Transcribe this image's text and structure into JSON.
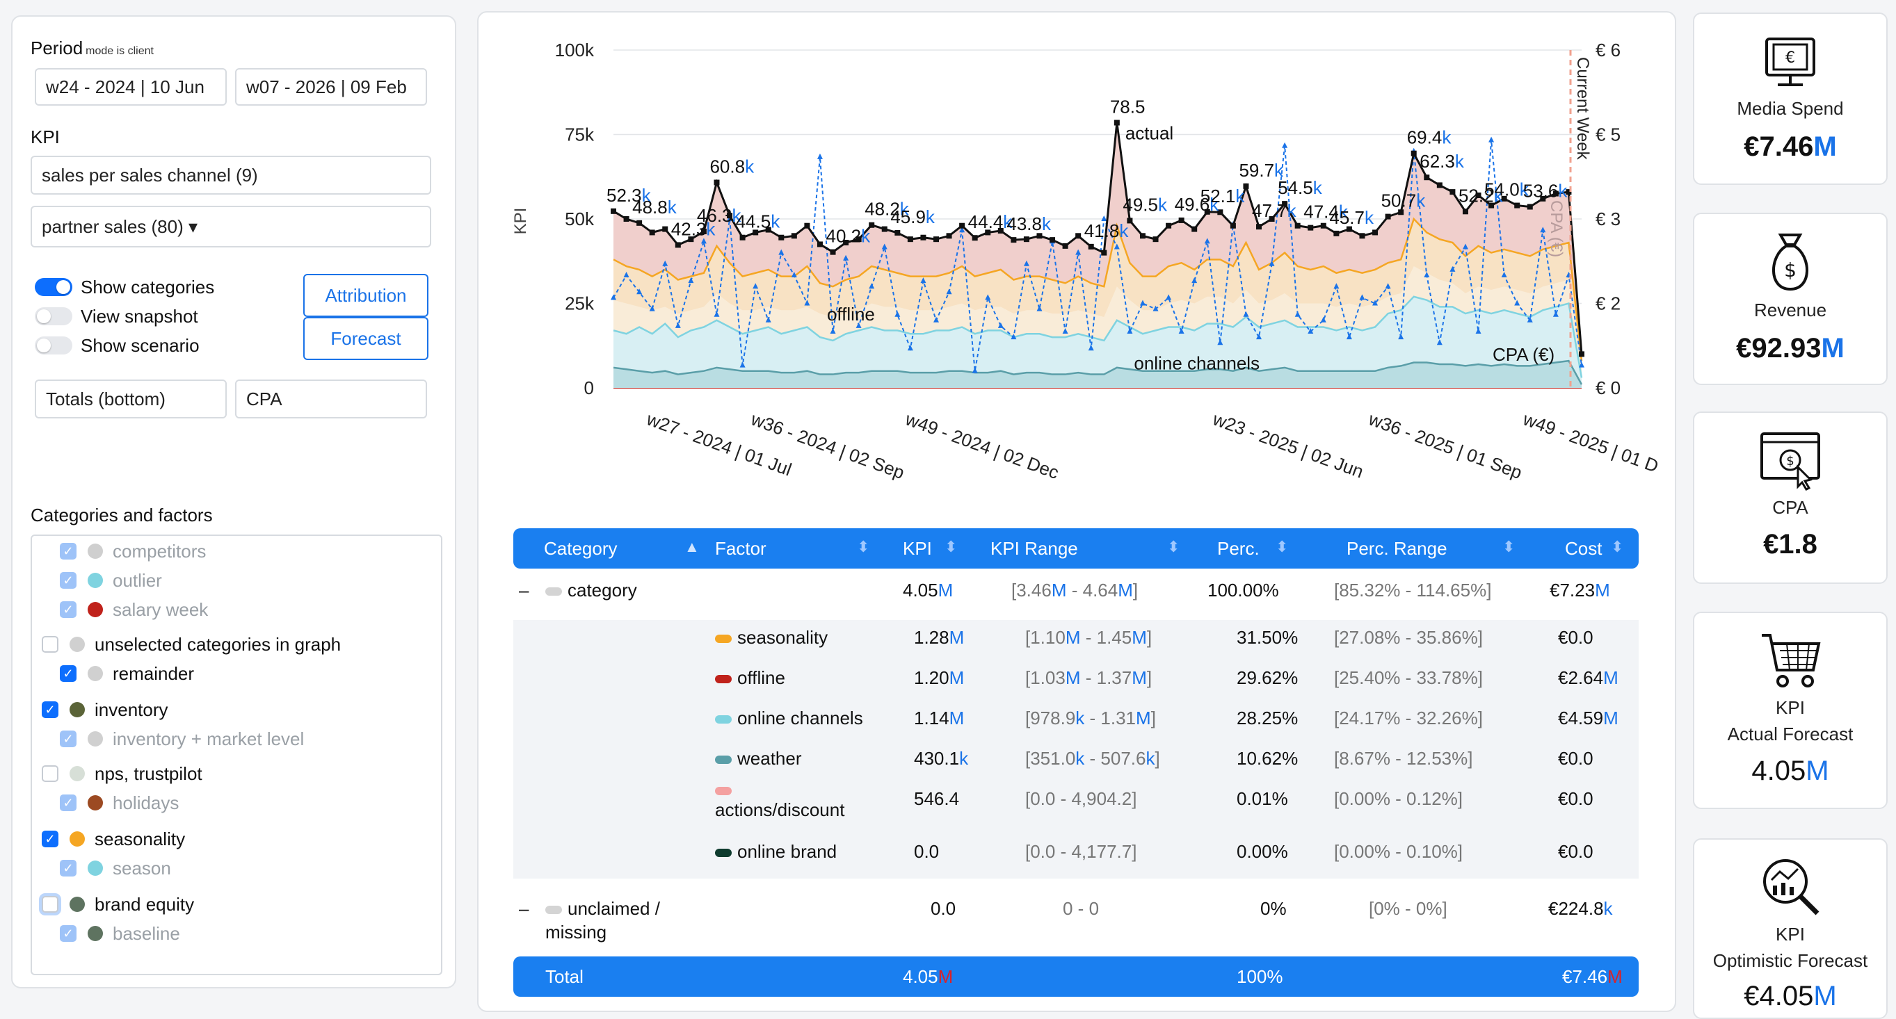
{
  "sidebar": {
    "period_label": "Period",
    "period_note": "mode is client",
    "period_start": "w24 - 2024 | 10 Jun",
    "period_end": "w07 - 2026 | 09 Feb",
    "kpi_label": "KPI",
    "kpi_select": "sales per sales channel (9)",
    "kpi_sub_select": "partner sales (80) ▾",
    "toggles": [
      {
        "label": "Show categories",
        "on": true
      },
      {
        "label": "View snapshot",
        "on": false
      },
      {
        "label": "Show scenario",
        "on": false
      }
    ],
    "attribution_button": "Attribution",
    "forecast_button": "Forecast",
    "totals_select": "Totals (bottom)",
    "metric_select": "CPA",
    "categories_label": "Categories and factors",
    "categories": [
      {
        "label": "competitors",
        "state": "dim",
        "color": "#cfcfcf",
        "indent": true,
        "faded": true
      },
      {
        "label": "outlier",
        "state": "dim",
        "color": "#7fd3e0",
        "indent": true,
        "faded": true
      },
      {
        "label": "salary week",
        "state": "dim",
        "color": "#c0221b",
        "indent": true,
        "faded": true
      },
      {
        "label": "unselected categories in graph",
        "state": "off",
        "color": "#d0d0d0",
        "indent": false,
        "faded": false
      },
      {
        "label": "remainder",
        "state": "on",
        "color": "#d0d0d0",
        "indent": true,
        "faded": false
      },
      {
        "label": "inventory",
        "state": "on",
        "color": "#5b6438",
        "indent": false,
        "faded": false
      },
      {
        "label": "inventory + market level",
        "state": "dim",
        "color": "#d0d0d0",
        "indent": true,
        "faded": true
      },
      {
        "label": "nps, trustpilot",
        "state": "off",
        "color": "#d7dfd7",
        "indent": false,
        "faded": false
      },
      {
        "label": "holidays",
        "state": "dim",
        "color": "#9c4a22",
        "indent": true,
        "faded": true
      },
      {
        "label": "seasonality",
        "state": "on",
        "color": "#f5a623",
        "indent": false,
        "faded": false
      },
      {
        "label": "season",
        "state": "dim",
        "color": "#7fd3e0",
        "indent": true,
        "faded": true
      },
      {
        "label": "brand equity",
        "state": "off",
        "color": "#5e7360",
        "indent": false,
        "faded": false
      },
      {
        "label": "baseline",
        "state": "dim",
        "color": "#5e7360",
        "indent": true,
        "faded": true
      }
    ]
  },
  "chart_data": {
    "type": "area",
    "y_left_ticks": [
      "0",
      "25k",
      "50k",
      "75k",
      "100k"
    ],
    "y_right_ticks": [
      "€ 0",
      "€ 2",
      "€ 3",
      "€ 5",
      "€ 6"
    ],
    "ylabel": "KPI",
    "ylabel_right": "CPA (€)",
    "ylim": [
      0,
      100000
    ],
    "x_ticks": [
      "w27 - 2024 | 01 Jul",
      "w36 - 2024 | 02 Sep",
      "w49 - 2024 | 02 Dec",
      "w23 - 2025 | 02 Jun",
      "w36 - 2025 | 01 Sep",
      "w49 - 2025 | 01 D"
    ],
    "current_week_label": "Current Week",
    "series_labels": {
      "actual": "actual",
      "offline": "offline",
      "online": "online channels",
      "cpa": "CPA (€)"
    },
    "actual": [
      52300,
      50000,
      48800,
      46000,
      47000,
      42300,
      44000,
      46300,
      60800,
      51000,
      44500,
      46000,
      46800,
      44500,
      45000,
      48000,
      42500,
      40200,
      43000,
      44000,
      48200,
      47000,
      45900,
      44000,
      44500,
      44000,
      45000,
      48000,
      44400,
      46000,
      46500,
      43800,
      44000,
      45000,
      43800,
      42000,
      45000,
      41800,
      40000,
      78500,
      49500,
      45000,
      44000,
      48000,
      49600,
      47000,
      52100,
      52000,
      48000,
      59700,
      47700,
      50000,
      54500,
      48000,
      47400,
      48000,
      45700,
      47000,
      45000,
      46000,
      50700,
      52000,
      69400,
      62300,
      60000,
      58000,
      52200,
      57000,
      54000,
      56000,
      54000,
      53600,
      56000,
      57500,
      58000,
      10000
    ],
    "stack_top_offline": [
      38000,
      36000,
      35000,
      33000,
      35000,
      32000,
      33000,
      34000,
      42000,
      37000,
      33000,
      34000,
      35000,
      33000,
      33000,
      36000,
      31000,
      30000,
      32000,
      33000,
      36000,
      35000,
      34000,
      33000,
      33000,
      33000,
      34000,
      36000,
      33000,
      34000,
      35000,
      32000,
      33000,
      33000,
      32000,
      31000,
      33000,
      31000,
      30000,
      48000,
      37000,
      33000,
      33000,
      36000,
      37000,
      35000,
      38000,
      38000,
      36000,
      43000,
      35000,
      37000,
      40000,
      36000,
      35000,
      36000,
      34000,
      35000,
      34000,
      35000,
      37000,
      38000,
      50000,
      46000,
      44000,
      43000,
      39000,
      42000,
      40000,
      41000,
      40000,
      39000,
      41000,
      42000,
      43000,
      8000
    ],
    "stack_top_seasonality": [
      26000,
      25000,
      24000,
      23000,
      24000,
      22000,
      23000,
      24000,
      28000,
      25000,
      23000,
      23000,
      24000,
      23000,
      23000,
      24000,
      22000,
      21000,
      22000,
      23000,
      25000,
      24000,
      24000,
      23000,
      23000,
      23000,
      24000,
      25000,
      23000,
      24000,
      24000,
      22000,
      23000,
      23000,
      22000,
      22000,
      23000,
      22000,
      21000,
      30000,
      26000,
      23000,
      23000,
      25000,
      26000,
      25000,
      27000,
      27000,
      25000,
      29000,
      25000,
      26000,
      28000,
      25000,
      25000,
      25000,
      24000,
      25000,
      24000,
      25000,
      27000,
      28000,
      36000,
      34000,
      32000,
      31000,
      28000,
      30000,
      29000,
      30000,
      29000,
      28000,
      30000,
      31000,
      32000,
      5000
    ],
    "stack_top_online": [
      17000,
      16000,
      18000,
      16000,
      19000,
      15000,
      17000,
      18000,
      20000,
      18000,
      16000,
      17000,
      18000,
      16000,
      17000,
      18000,
      15000,
      14000,
      16000,
      17000,
      18000,
      17000,
      17000,
      16000,
      16000,
      17000,
      17000,
      18000,
      16000,
      17000,
      17000,
      15000,
      16000,
      16000,
      15000,
      15000,
      16000,
      15000,
      14000,
      20000,
      18000,
      16000,
      17000,
      18000,
      18000,
      17000,
      19000,
      19000,
      18000,
      21000,
      18000,
      19000,
      20000,
      18000,
      18000,
      18000,
      17000,
      18000,
      17000,
      18000,
      22000,
      23000,
      27000,
      26000,
      24000,
      24000,
      22000,
      23000,
      22000,
      23000,
      22000,
      21000,
      23000,
      24000,
      25000,
      3000
    ],
    "stack_top_weather": [
      6000,
      5500,
      5000,
      4500,
      5000,
      4000,
      4500,
      5000,
      6000,
      5500,
      5000,
      5000,
      5000,
      4500,
      4500,
      5000,
      4000,
      4000,
      4500,
      4500,
      5000,
      5000,
      5000,
      4500,
      4500,
      4500,
      5000,
      5000,
      4500,
      4500,
      5000,
      4000,
      4500,
      4500,
      4000,
      4000,
      4500,
      4000,
      4000,
      6000,
      5500,
      5000,
      5000,
      5000,
      5000,
      5000,
      5500,
      5500,
      5000,
      6000,
      5000,
      5500,
      6000,
      5000,
      5000,
      5000,
      5000,
      5000,
      5000,
      5000,
      6000,
      6500,
      7500,
      7500,
      7000,
      7000,
      6500,
      7000,
      6500,
      7000,
      6500,
      6500,
      7000,
      7500,
      8000,
      1000
    ],
    "cpa": [
      1.6,
      2.0,
      1.7,
      1.4,
      2.2,
      1.1,
      1.9,
      2.6,
      1.3,
      3.0,
      0.4,
      1.8,
      1.2,
      2.4,
      2.0,
      1.5,
      4.1,
      1.0,
      2.3,
      1.1,
      1.8,
      2.5,
      1.3,
      0.7,
      1.9,
      1.2,
      1.7,
      2.8,
      0.3,
      1.6,
      1.1,
      0.9,
      2.2,
      1.4,
      2.6,
      1.0,
      2.4,
      0.7,
      3.0,
      2.5,
      1.0,
      1.5,
      1.4,
      1.6,
      1.0,
      1.9,
      2.6,
      0.8,
      2.9,
      1.3,
      0.9,
      2.2,
      4.3,
      1.3,
      1.0,
      1.2,
      1.8,
      0.9,
      1.6,
      1.5,
      1.8,
      0.9,
      4.2,
      2.0,
      0.8,
      2.1,
      2.5,
      1.0,
      4.4,
      2.0,
      1.5,
      1.2,
      2.8,
      1.3,
      2.0,
      0.4
    ],
    "point_labels": [
      {
        "i": 0,
        "text": "52.3",
        "unit": "k"
      },
      {
        "i": 2,
        "text": "48.8",
        "unit": "k"
      },
      {
        "i": 5,
        "text": "42.3",
        "unit": "k"
      },
      {
        "i": 8,
        "text": "60.8",
        "unit": "k"
      },
      {
        "i": 7,
        "text": "46.3",
        "unit": "k"
      },
      {
        "i": 10,
        "text": "44.5",
        "unit": "k"
      },
      {
        "i": 17,
        "text": "40.2",
        "unit": "k"
      },
      {
        "i": 20,
        "text": "48.2",
        "unit": "k"
      },
      {
        "i": 22,
        "text": "45.9",
        "unit": "k"
      },
      {
        "i": 28,
        "text": "44.4",
        "unit": "k"
      },
      {
        "i": 31,
        "text": "43.8",
        "unit": "k"
      },
      {
        "i": 37,
        "text": "41.8",
        "unit": "k"
      },
      {
        "i": 39,
        "text": "78.5",
        "unit": ""
      },
      {
        "i": 40,
        "text": "49.5",
        "unit": "k"
      },
      {
        "i": 44,
        "text": "49.6",
        "unit": "k"
      },
      {
        "i": 46,
        "text": "52.1",
        "unit": "k"
      },
      {
        "i": 49,
        "text": "59.7",
        "unit": "k"
      },
      {
        "i": 50,
        "text": "47.7",
        "unit": "k"
      },
      {
        "i": 52,
        "text": "54.5",
        "unit": "k"
      },
      {
        "i": 54,
        "text": "47.4",
        "unit": "k"
      },
      {
        "i": 56,
        "text": "45.7",
        "unit": "k"
      },
      {
        "i": 60,
        "text": "50.7",
        "unit": "k"
      },
      {
        "i": 62,
        "text": "69.4",
        "unit": "k"
      },
      {
        "i": 63,
        "text": "62.3",
        "unit": "k"
      },
      {
        "i": 66,
        "text": "52.2",
        "unit": "k"
      },
      {
        "i": 68,
        "text": "54.0",
        "unit": "k"
      },
      {
        "i": 71,
        "text": "53.6",
        "unit": "k"
      }
    ]
  },
  "table": {
    "headers": [
      "Category",
      "Factor",
      "KPI",
      "KPI Range",
      "Perc.",
      "Perc. Range",
      "Cost"
    ],
    "category_row": {
      "toggle": "–",
      "name": "category",
      "kpi": "4.05",
      "kpi_unit": "M",
      "range_a": "[3.46",
      "range_a_unit": "M",
      "range_b": " - 4.64",
      "range_b_unit": "M",
      "range_end": "]",
      "perc": "100.00%",
      "perc_range": "[85.32% - 114.65%]",
      "cost": "€7.23",
      "cost_unit": "M"
    },
    "factors": [
      {
        "name": "seasonality",
        "color": "#f5a623",
        "kpi": "1.28",
        "kpi_unit": "M",
        "range": "[1.10",
        "ru1": "M",
        "range2": " - 1.45",
        "ru2": "M",
        "perc": "31.50%",
        "perc_range": "[27.08% - 35.86%]",
        "cost": "€0.0",
        "cost_unit": ""
      },
      {
        "name": "offline",
        "color": "#c0221b",
        "kpi": "1.20",
        "kpi_unit": "M",
        "range": "[1.03",
        "ru1": "M",
        "range2": " - 1.37",
        "ru2": "M",
        "perc": "29.62%",
        "perc_range": "[25.40% - 33.78%]",
        "cost": "€2.64",
        "cost_unit": "M"
      },
      {
        "name": "online channels",
        "color": "#7fd3e0",
        "kpi": "1.14",
        "kpi_unit": "M",
        "range": "[978.9",
        "ru1": "k",
        "range2": " - 1.31",
        "ru2": "M",
        "perc": "28.25%",
        "perc_range": "[24.17% - 32.26%]",
        "cost": "€4.59",
        "cost_unit": "M"
      },
      {
        "name": "weather",
        "color": "#5a9ea8",
        "kpi": "430.1",
        "kpi_unit": "k",
        "range": "[351.0",
        "ru1": "k",
        "range2": " - 507.6",
        "ru2": "k",
        "perc": "10.62%",
        "perc_range": "[8.67% - 12.53%]",
        "cost": "€0.0",
        "cost_unit": ""
      },
      {
        "name": "actions/discount",
        "color": "#f4a0a0",
        "kpi": "546.4",
        "kpi_unit": "",
        "range": "[0.0 - 4,904.2]",
        "ru1": "",
        "range2": "",
        "ru2": "",
        "perc": "0.01%",
        "perc_range": "[0.00% - 0.12%]",
        "cost": "€0.0",
        "cost_unit": ""
      },
      {
        "name": "online brand",
        "color": "#0e3b2e",
        "kpi": "0.0",
        "kpi_unit": "",
        "range": "[0.0 - 4,177.7]",
        "ru1": "",
        "range2": "",
        "ru2": "",
        "perc": "0.00%",
        "perc_range": "[0.00% - 0.10%]",
        "cost": "€0.0",
        "cost_unit": ""
      }
    ],
    "unclaimed_row": {
      "toggle": "–",
      "name_line1": "unclaimed /",
      "name_line2": "missing",
      "kpi": "0.0",
      "range": "0 - 0",
      "perc": "0%",
      "perc_range": "[0% - 0%]",
      "cost": "€224.8",
      "cost_unit": "k"
    },
    "total_row": {
      "label": "Total",
      "kpi": "4.05",
      "kpi_unit": "M",
      "perc": "100%",
      "cost": "€7.46",
      "cost_unit": "M"
    }
  },
  "kpi_cards": [
    {
      "icon": "monitor-euro-icon",
      "title": "Media Spend",
      "value": "€7.46",
      "unit": "M"
    },
    {
      "icon": "money-bag-icon",
      "title": "Revenue",
      "value": "€92.93",
      "unit": "M"
    },
    {
      "icon": "browser-coin-click-icon",
      "title": "CPA",
      "value": "€1.8",
      "unit": ""
    },
    {
      "icon": "shopping-cart-icon",
      "title": "KPI",
      "subtitle": "Actual Forecast",
      "value": "4.05",
      "unit": "M"
    },
    {
      "icon": "magnifier-chart-icon",
      "title": "KPI",
      "subtitle": "Optimistic Forecast",
      "value": "€4.05",
      "unit": "M"
    }
  ],
  "colors": {
    "accent": "#1a7ff0",
    "actual_line": "#111111",
    "offline": "#c0221b",
    "seasonality": "#f5a623",
    "online": "#7fd3e0",
    "weather": "#5a9ea8",
    "cpa_line": "#1a73e8",
    "current_week": "#f0a28f"
  }
}
